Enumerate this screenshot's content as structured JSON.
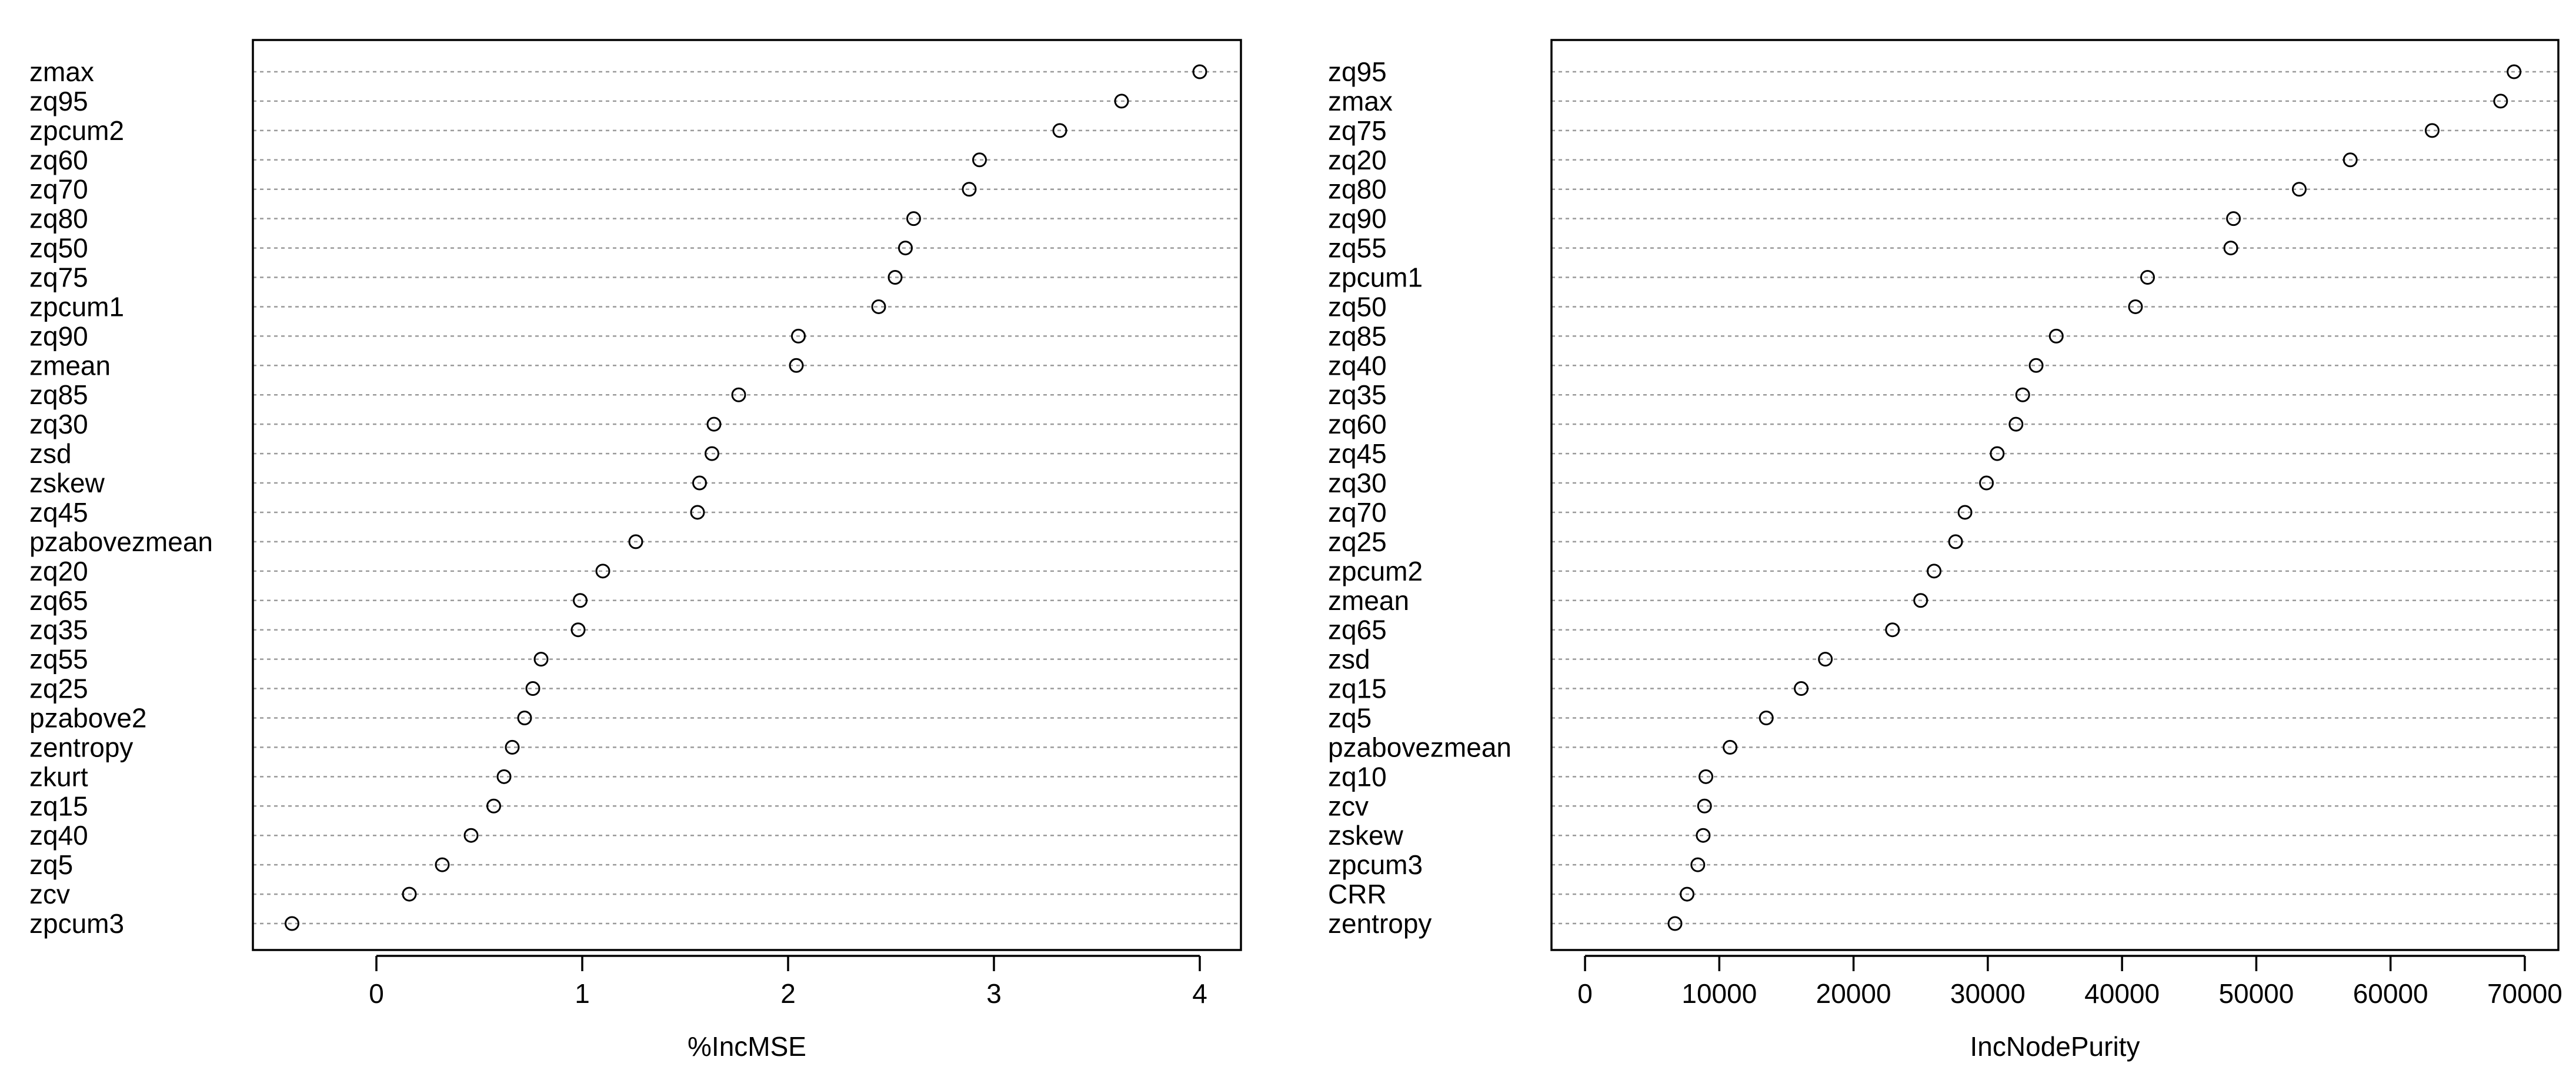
{
  "chart_data": [
    {
      "type": "dot",
      "xlabel": "%IncMSE",
      "ylabel": "",
      "xlim": [
        -0.6,
        4.2
      ],
      "xticks": [
        0,
        1,
        2,
        3,
        4
      ],
      "grid": true,
      "categories": [
        "zmax",
        "zq95",
        "zpcum2",
        "zq60",
        "zq70",
        "zq80",
        "zq50",
        "zq75",
        "zpcum1",
        "zq90",
        "zmean",
        "zq85",
        "zq30",
        "zsd",
        "zskew",
        "zq45",
        "pzabovezmean",
        "zq20",
        "zq65",
        "zq35",
        "zq55",
        "zq25",
        "pzabove2",
        "zentropy",
        "zkurt",
        "zq15",
        "zq40",
        "zq5",
        "zcv",
        "zpcum3"
      ],
      "values": [
        4.0,
        3.62,
        3.32,
        2.93,
        2.88,
        2.61,
        2.57,
        2.52,
        2.44,
        2.05,
        2.04,
        1.76,
        1.64,
        1.63,
        1.57,
        1.56,
        1.26,
        1.1,
        0.99,
        0.98,
        0.8,
        0.76,
        0.72,
        0.66,
        0.62,
        0.57,
        0.46,
        0.32,
        0.16,
        -0.41
      ]
    },
    {
      "type": "dot",
      "xlabel": "IncNodePurity",
      "ylabel": "",
      "xlim": [
        -2500,
        72500
      ],
      "xticks": [
        0,
        10000,
        20000,
        30000,
        40000,
        50000,
        60000,
        70000
      ],
      "grid": true,
      "categories": [
        "zq95",
        "zmax",
        "zq75",
        "zq20",
        "zq80",
        "zq90",
        "zq55",
        "zpcum1",
        "zq50",
        "zq85",
        "zq40",
        "zq35",
        "zq60",
        "zq45",
        "zq30",
        "zq70",
        "zq25",
        "zpcum2",
        "zmean",
        "zq65",
        "zsd",
        "zq15",
        "zq5",
        "pzabovezmean",
        "zq10",
        "zcv",
        "zskew",
        "zpcum3",
        "CRR",
        "zentropy"
      ],
      "values": [
        69200,
        68200,
        63100,
        57000,
        53200,
        48300,
        48100,
        41900,
        41000,
        35100,
        33600,
        32600,
        32100,
        30700,
        29900,
        28300,
        27600,
        26000,
        25000,
        22900,
        17900,
        16100,
        13500,
        10800,
        9000,
        8900,
        8800,
        8400,
        7600,
        6700
      ]
    }
  ]
}
